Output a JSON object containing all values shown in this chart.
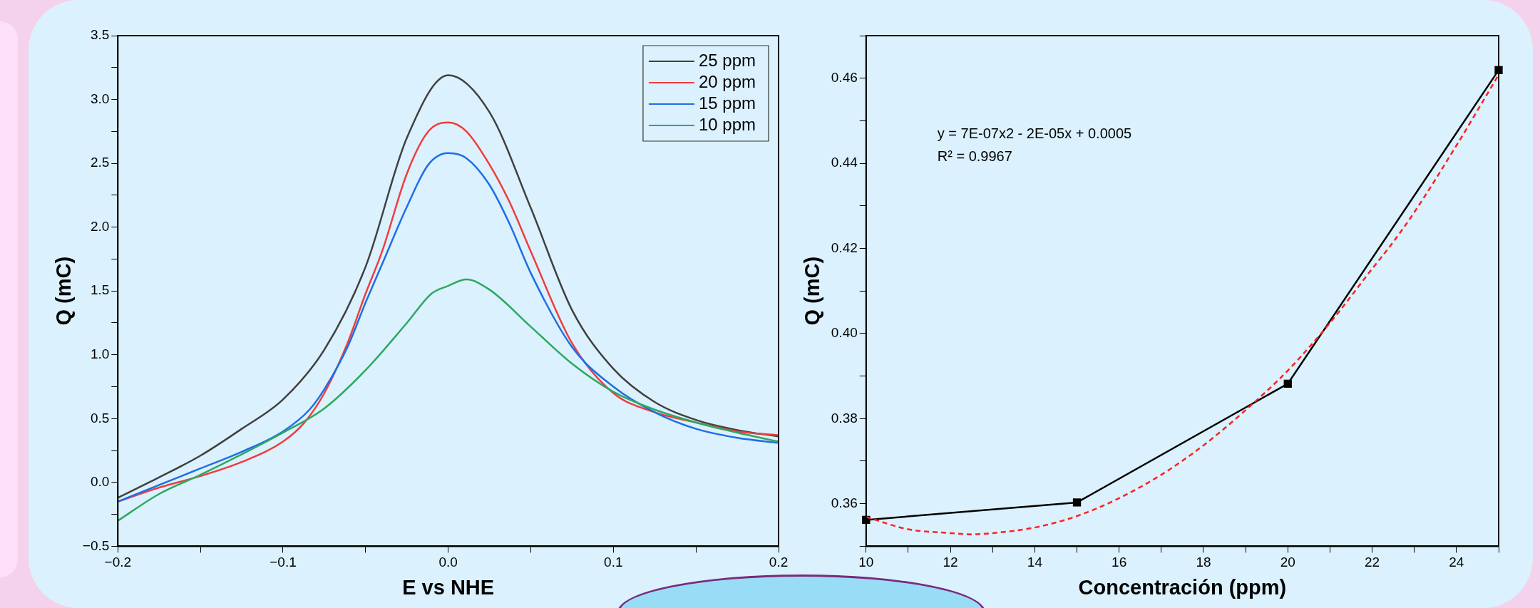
{
  "chart_data": [
    {
      "type": "line",
      "xlabel": "E vs NHE",
      "ylabel": "Q (mC)",
      "xlim": [
        -0.2,
        0.2
      ],
      "ylim": [
        -0.5,
        3.5
      ],
      "xticks": [
        {
          "value": -0.2,
          "label": "−0.2"
        },
        {
          "value": -0.15,
          "label": null
        },
        {
          "value": -0.1,
          "label": "−0.1"
        },
        {
          "value": -0.05,
          "label": null
        },
        {
          "value": 0,
          "label": "0.0"
        },
        {
          "value": 0.05,
          "label": null
        },
        {
          "value": 0.1,
          "label": "0.1"
        },
        {
          "value": 0.15,
          "label": null
        },
        {
          "value": 0.2,
          "label": "0.2"
        }
      ],
      "yticks": [
        {
          "value": -0.5,
          "label": "−0.5"
        },
        {
          "value": -0.25,
          "label": null
        },
        {
          "value": 0,
          "label": "0.0"
        },
        {
          "value": 0.25,
          "label": null
        },
        {
          "value": 0.5,
          "label": "0.5"
        },
        {
          "value": 0.75,
          "label": null
        },
        {
          "value": 1,
          "label": "1.0"
        },
        {
          "value": 1.25,
          "label": null
        },
        {
          "value": 1.5,
          "label": "1.5"
        },
        {
          "value": 1.75,
          "label": null
        },
        {
          "value": 2,
          "label": "2.0"
        },
        {
          "value": 2.25,
          "label": null
        },
        {
          "value": 2.5,
          "label": "2.5"
        },
        {
          "value": 2.75,
          "label": null
        },
        {
          "value": 3,
          "label": "3.0"
        },
        {
          "value": 3.25,
          "label": null
        },
        {
          "value": 3.5,
          "label": "3.5"
        }
      ],
      "legend": "top right",
      "marker": "none",
      "line_style": "solid",
      "grid": false,
      "series": [
        {
          "name": "25 ppm",
          "color": "#404040",
          "x": [
            -0.2,
            -0.175,
            -0.15,
            -0.125,
            -0.1,
            -0.075,
            -0.05,
            -0.025,
            0,
            0.025,
            0.05,
            0.075,
            0.1,
            0.125,
            0.15,
            0.175,
            0.2
          ],
          "values": [
            -0.12,
            0.04,
            0.21,
            0.42,
            0.65,
            1.04,
            1.69,
            2.7,
            3.19,
            2.9,
            2.15,
            1.35,
            0.89,
            0.63,
            0.49,
            0.41,
            0.36
          ]
        },
        {
          "name": "20 ppm",
          "color": "#f03c3c",
          "x": [
            -0.2,
            -0.175,
            -0.15,
            -0.125,
            -0.1,
            -0.087,
            -0.075,
            -0.061,
            -0.05,
            -0.04,
            -0.025,
            -0.012,
            0,
            0.011,
            0.025,
            0.037,
            0.05,
            0.075,
            0.1,
            0.125,
            0.15,
            0.175,
            0.2
          ],
          "values": [
            -0.15,
            -0.04,
            0.05,
            0.16,
            0.32,
            0.47,
            0.7,
            1.09,
            1.48,
            1.81,
            2.42,
            2.75,
            2.82,
            2.75,
            2.49,
            2.2,
            1.81,
            1.09,
            0.7,
            0.55,
            0.47,
            0.4,
            0.37
          ]
        },
        {
          "name": "15 ppm",
          "color": "#1e6ee6",
          "x": [
            -0.2,
            -0.175,
            -0.15,
            -0.125,
            -0.1,
            -0.084,
            -0.075,
            -0.061,
            -0.05,
            -0.04,
            -0.025,
            -0.012,
            0,
            0.011,
            0.025,
            0.037,
            0.05,
            0.075,
            0.1,
            0.125,
            0.15,
            0.175,
            0.2
          ],
          "values": [
            -0.15,
            -0.02,
            0.11,
            0.24,
            0.4,
            0.57,
            0.73,
            1.06,
            1.41,
            1.71,
            2.16,
            2.49,
            2.58,
            2.54,
            2.33,
            2.03,
            1.64,
            1.06,
            0.75,
            0.55,
            0.42,
            0.35,
            0.31
          ]
        },
        {
          "name": "10 ppm",
          "color": "#2ea860",
          "x": [
            -0.2,
            -0.175,
            -0.15,
            -0.125,
            -0.1,
            -0.075,
            -0.05,
            -0.025,
            -0.01,
            0,
            0.011,
            0.025,
            0.05,
            0.075,
            0.1,
            0.125,
            0.15,
            0.175,
            0.2
          ],
          "values": [
            -0.3,
            -0.09,
            0.06,
            0.22,
            0.39,
            0.58,
            0.88,
            1.25,
            1.48,
            1.54,
            1.59,
            1.51,
            1.22,
            0.93,
            0.71,
            0.57,
            0.47,
            0.39,
            0.32
          ]
        }
      ]
    },
    {
      "type": "line",
      "xlabel": "Concentración (ppm)",
      "ylabel": "Q (mC)",
      "xlim": [
        10,
        25
      ],
      "ylim": [
        0.35,
        0.47
      ],
      "xticks": [
        10,
        {
          "value": 11,
          "label": null
        },
        12,
        {
          "value": 13,
          "label": null
        },
        14,
        {
          "value": 15,
          "label": null
        },
        16,
        {
          "value": 17,
          "label": null
        },
        18,
        {
          "value": 19,
          "label": null
        },
        20,
        {
          "value": 21,
          "label": null
        },
        22,
        {
          "value": 23,
          "label": null
        },
        24,
        {
          "value": 25,
          "label": null
        }
      ],
      "yticks": [
        {
          "value": 0.35,
          "label": null
        },
        0.36,
        {
          "value": 0.37,
          "label": null
        },
        0.38,
        {
          "value": 0.39,
          "label": null
        },
        {
          "value": 0.4,
          "label": "0.40"
        },
        {
          "value": 0.41,
          "label": null
        },
        0.42,
        {
          "value": 0.43,
          "label": null
        },
        0.44,
        {
          "value": 0.45,
          "label": null
        },
        0.46,
        {
          "value": 0.47,
          "label": null
        }
      ],
      "grid": false,
      "annotations": [
        "y = 7E-07x2 - 2E-05x + 0.0005",
        "R² = 0.9967"
      ],
      "series": [
        {
          "color": "#000000",
          "marker": "square",
          "line_style": "solid",
          "x": [
            10,
            15,
            20,
            25
          ],
          "values": [
            0.3562,
            0.3603,
            0.3882,
            0.4619
          ]
        },
        {
          "type": "line",
          "color": "#ff2020",
          "marker": "none",
          "line_style": "dashed",
          "x": [
            10,
            11,
            12,
            12.5,
            13,
            14,
            15,
            16,
            17,
            17.5,
            18,
            19,
            20,
            21,
            22,
            22.5,
            23,
            24,
            25
          ],
          "values": [
            0.3569,
            0.354,
            0.3531,
            0.3528,
            0.3531,
            0.3544,
            0.3571,
            0.3613,
            0.3668,
            0.3701,
            0.3737,
            0.382,
            0.3913,
            0.4025,
            0.4152,
            0.4215,
            0.4285,
            0.4442,
            0.4608
          ]
        }
      ]
    }
  ]
}
